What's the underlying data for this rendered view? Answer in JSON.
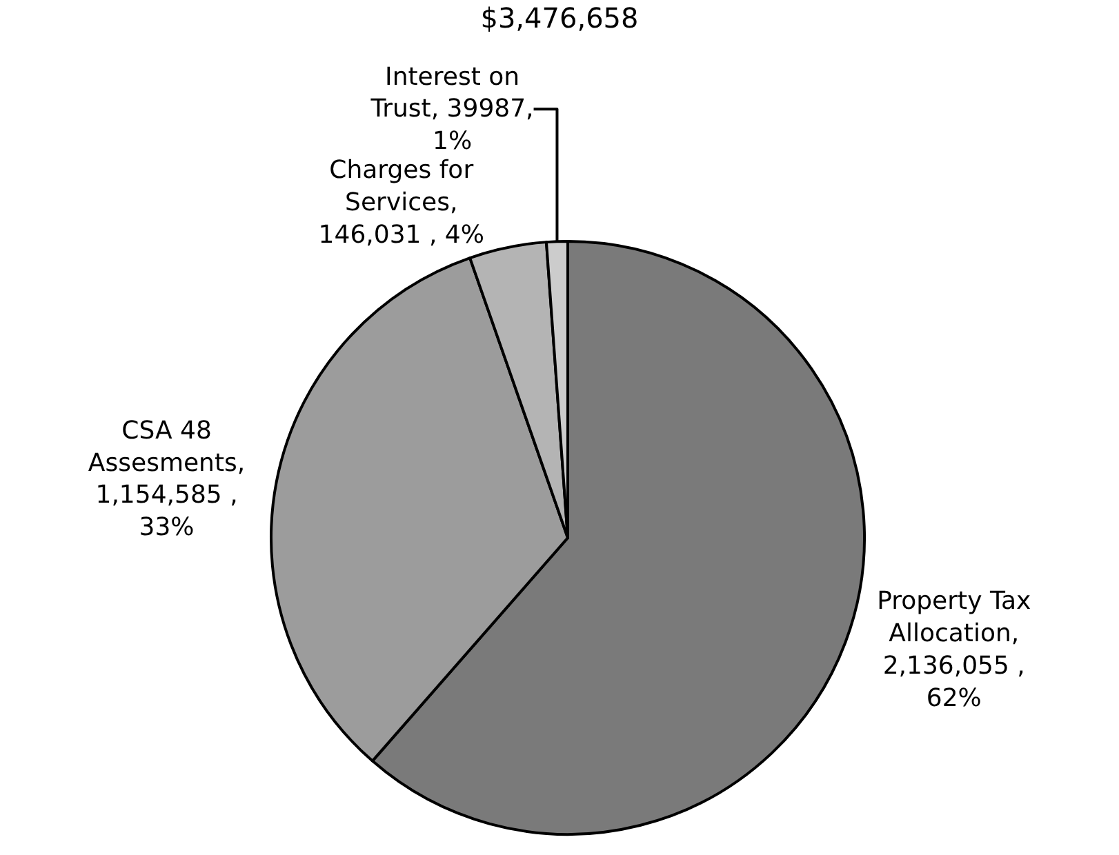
{
  "chart_data": {
    "type": "pie",
    "title": "$3,476,658",
    "categories": [
      "Property Tax Allocation",
      "CSA 48 Assesments",
      "Charges for Services",
      "Interest on Trust"
    ],
    "values": [
      2136055,
      1154585,
      146031,
      39987
    ],
    "value_labels": [
      ", 2,136,055 , 62%",
      ", 1,154,585 , 33%",
      ", 146,031 , 4%",
      ", 39987, 1%"
    ],
    "colors": [
      "#7a7a7a",
      "#9c9c9c",
      "#b4b4b4",
      "#cccccc"
    ],
    "legend": false
  }
}
